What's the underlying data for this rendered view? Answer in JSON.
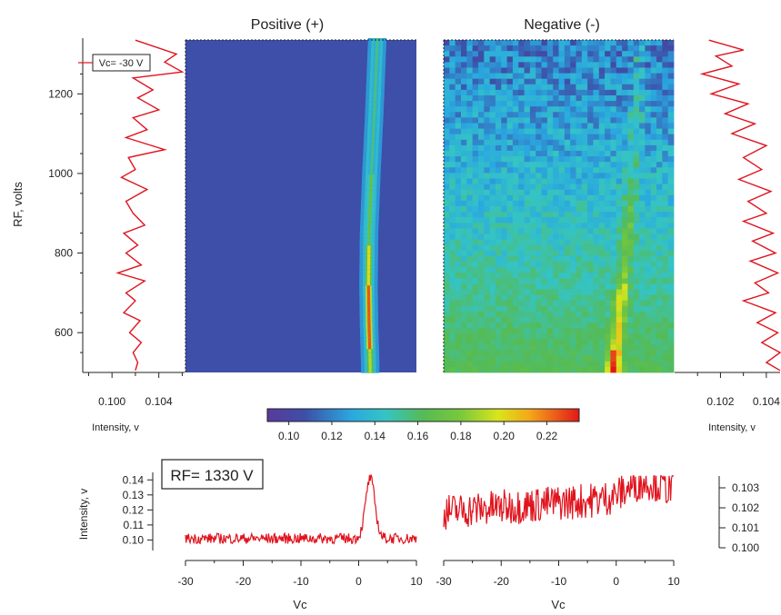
{
  "titles": {
    "positive": "Positive (+)",
    "negative": "Negative (-)"
  },
  "annotations": {
    "vc_label": "Vc= -30 V",
    "rf_label": "RF= 1330 V"
  },
  "colors": {
    "trace": "#e0141e",
    "heatmap_background_positive": "#3d4fa8",
    "colorbar_low": "#5a3a9a",
    "colorbar_high": "#e21818"
  },
  "chart_data": [
    {
      "id": "left-profile",
      "type": "line",
      "title": "",
      "xlabel": "Intensity, v",
      "ylabel": "RF, volts",
      "xlim": [
        0.0975,
        0.1062
      ],
      "ylim": [
        500,
        1340
      ],
      "x_ticks": [
        "0.100",
        "0.104"
      ],
      "y_ticks": [
        "600",
        "800",
        "1000",
        "1200"
      ],
      "y_tick_values": [
        600,
        800,
        1000,
        1200
      ],
      "series": [
        {
          "description": "Intensity vs RF at Vc = -30 V (left column of positive map)",
          "points": [
            [
              0.102,
              1335
            ],
            [
              0.1055,
              1300
            ],
            [
              0.1045,
              1280
            ],
            [
              0.106,
              1255
            ],
            [
              0.1018,
              1240
            ],
            [
              0.1035,
              1210
            ],
            [
              0.1022,
              1190
            ],
            [
              0.104,
              1160
            ],
            [
              0.1018,
              1140
            ],
            [
              0.103,
              1110
            ],
            [
              0.1012,
              1090
            ],
            [
              0.1045,
              1060
            ],
            [
              0.1014,
              1040
            ],
            [
              0.102,
              1010
            ],
            [
              0.1008,
              990
            ],
            [
              0.103,
              960
            ],
            [
              0.1012,
              930
            ],
            [
              0.1018,
              900
            ],
            [
              0.1028,
              870
            ],
            [
              0.101,
              850
            ],
            [
              0.1022,
              820
            ],
            [
              0.1012,
              800
            ],
            [
              0.1025,
              770
            ],
            [
              0.1005,
              750
            ],
            [
              0.1028,
              730
            ],
            [
              0.1012,
              700
            ],
            [
              0.102,
              680
            ],
            [
              0.101,
              650
            ],
            [
              0.1024,
              630
            ],
            [
              0.1015,
              600
            ],
            [
              0.1025,
              575
            ],
            [
              0.1018,
              550
            ],
            [
              0.1022,
              525
            ],
            [
              0.102,
              505
            ]
          ]
        }
      ]
    },
    {
      "id": "positive-map",
      "type": "heatmap",
      "title": "Positive (+)",
      "xlim": [
        -30,
        10
      ],
      "ylim": [
        500,
        1340
      ],
      "description": "Single narrow peak near Vc = 2 V, curving slightly toward higher Vc at high RF; peak intensity highest (~0.22) near RF 550–700 V; background ~0.10",
      "peak_ridge": [
        [
          2.0,
          520
        ],
        [
          1.8,
          620
        ],
        [
          1.7,
          720
        ],
        [
          1.8,
          850
        ],
        [
          2.2,
          1000
        ],
        [
          2.7,
          1150
        ],
        [
          3.2,
          1330
        ]
      ]
    },
    {
      "id": "negative-map",
      "type": "heatmap",
      "title": "Negative (-)",
      "xlim": [
        -30,
        10
      ],
      "ylim": [
        500,
        1340
      ],
      "description": "Noisy background ~0.12 at high RF rising to ~0.16 at low RF; faint ridge from Vc ≈ -0.5 V at low RF to Vc ≈ 4 V at high RF, reaching ~0.22 near RF 520 V",
      "peak_ridge": [
        [
          -0.5,
          510
        ],
        [
          0.2,
          600
        ],
        [
          1.0,
          700
        ],
        [
          1.8,
          800
        ],
        [
          2.5,
          950
        ],
        [
          3.2,
          1100
        ],
        [
          4.0,
          1300
        ]
      ]
    },
    {
      "id": "colorbar",
      "type": "heatmap",
      "range": [
        0.09,
        0.235
      ],
      "ticks": [
        "0.10",
        "0.12",
        "0.14",
        "0.16",
        "0.18",
        "0.20",
        "0.22"
      ],
      "tick_values": [
        0.1,
        0.12,
        0.14,
        0.16,
        0.18,
        0.2,
        0.22
      ]
    },
    {
      "id": "right-profile",
      "type": "line",
      "title": "",
      "xlabel": "Intensity, v",
      "xlim": [
        0.1,
        0.1046
      ],
      "ylim": [
        500,
        1340
      ],
      "x_ticks": [
        "0.102",
        "0.104"
      ],
      "x_tick_values": [
        0.102,
        0.104
      ],
      "series": [
        {
          "description": "Intensity vs RF (right side profile of negative map)",
          "points": [
            [
              0.1015,
              1335
            ],
            [
              0.103,
              1310
            ],
            [
              0.1018,
              1295
            ],
            [
              0.1025,
              1270
            ],
            [
              0.1012,
              1250
            ],
            [
              0.1028,
              1225
            ],
            [
              0.1016,
              1200
            ],
            [
              0.1032,
              1175
            ],
            [
              0.1022,
              1150
            ],
            [
              0.1035,
              1125
            ],
            [
              0.1025,
              1100
            ],
            [
              0.104,
              1070
            ],
            [
              0.103,
              1040
            ],
            [
              0.1038,
              1010
            ],
            [
              0.1028,
              985
            ],
            [
              0.1042,
              955
            ],
            [
              0.1032,
              930
            ],
            [
              0.104,
              900
            ],
            [
              0.103,
              880
            ],
            [
              0.1043,
              850
            ],
            [
              0.1034,
              830
            ],
            [
              0.1044,
              800
            ],
            [
              0.1033,
              780
            ],
            [
              0.1045,
              750
            ],
            [
              0.1035,
              725
            ],
            [
              0.1041,
              700
            ],
            [
              0.103,
              680
            ],
            [
              0.1044,
              650
            ],
            [
              0.1036,
              625
            ],
            [
              0.1045,
              600
            ],
            [
              0.1038,
              575
            ],
            [
              0.1046,
              550
            ],
            [
              0.104,
              525
            ],
            [
              0.1046,
              505
            ]
          ]
        }
      ]
    },
    {
      "id": "bottom-left-profile",
      "type": "line",
      "title": "",
      "xlabel": "Vc",
      "ylabel": "Intensity, v",
      "xlim": [
        -30,
        10
      ],
      "ylim": [
        0.093,
        0.145
      ],
      "x_ticks": [
        "-30",
        "-20",
        "-10",
        "0",
        "10"
      ],
      "x_tick_values": [
        -30,
        -20,
        -10,
        0,
        10
      ],
      "y_ticks": [
        "0.10",
        "0.11",
        "0.12",
        "0.13",
        "0.14"
      ],
      "y_tick_values": [
        0.1,
        0.11,
        0.12,
        0.13,
        0.14
      ],
      "series": [
        {
          "description": "Positive mode intensity vs Vc at RF = 1330 V; baseline ~0.101 with peak ~0.141 at Vc ≈ 2",
          "baseline": 0.101,
          "noise": 0.0035,
          "peak": {
            "center": 2.0,
            "height": 0.141,
            "width": 0.8
          }
        }
      ]
    },
    {
      "id": "bottom-right-profile",
      "type": "line",
      "title": "",
      "xlabel": "Vc",
      "xlim": [
        -30,
        10
      ],
      "ylim": [
        0.0998,
        0.1038
      ],
      "x_ticks": [
        "-30",
        "-20",
        "-10",
        "0",
        "10"
      ],
      "x_tick_values": [
        -30,
        -20,
        -10,
        0,
        10
      ],
      "y_ticks": [
        "0.100",
        "0.101",
        "0.102",
        "0.103"
      ],
      "y_tick_values": [
        0.1,
        0.101,
        0.102,
        0.103
      ],
      "series": [
        {
          "description": "Negative mode intensity vs Vc at RF = 1330 V; noisy, rising from ~0.1018 to ~0.1028 with bump near Vc ≈ 5",
          "start": 0.1018,
          "end": 0.1027,
          "noise": 0.0009,
          "bump": {
            "center": 5.0,
            "height": 0.0007,
            "width": 3
          }
        }
      ]
    }
  ]
}
